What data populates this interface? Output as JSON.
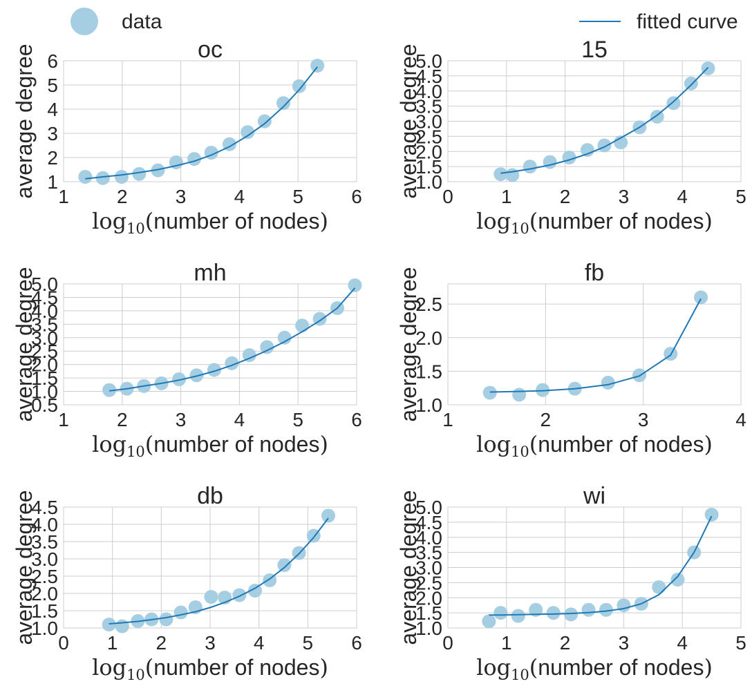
{
  "chart_data": {
    "type": "scatter",
    "legend": {
      "placement": "top",
      "data_label": "data",
      "fit_label": "fitted curve"
    },
    "colors": {
      "data": "#a6cee3",
      "fit": "#1f78b4",
      "grid": "#cccccc",
      "text": "#262626"
    },
    "panels": [
      {
        "id": "oc",
        "title": "oc",
        "xlabel": "log10(number of nodes)",
        "ylabel": "average degree",
        "xlim": [
          1,
          6
        ],
        "ylim": [
          1,
          6
        ],
        "xticks": [
          1,
          2,
          3,
          4,
          5,
          6
        ],
        "yticks": [
          1,
          2,
          3,
          4,
          5,
          6
        ],
        "ydec": 0,
        "x": [
          1.37,
          1.67,
          1.99,
          2.29,
          2.61,
          2.92,
          3.23,
          3.52,
          3.83,
          4.14,
          4.43,
          4.75,
          5.02,
          5.33
        ],
        "y": [
          1.2,
          1.15,
          1.2,
          1.32,
          1.47,
          1.8,
          1.94,
          2.2,
          2.55,
          3.05,
          3.5,
          4.25,
          4.95,
          5.8
        ],
        "fit_x": [
          1.37,
          1.67,
          1.99,
          2.29,
          2.61,
          2.92,
          3.23,
          3.52,
          3.83,
          4.14,
          4.43,
          4.75,
          5.02,
          5.33
        ],
        "fit_y": [
          1.12,
          1.2,
          1.28,
          1.38,
          1.5,
          1.66,
          1.85,
          2.1,
          2.45,
          2.9,
          3.4,
          4.1,
          4.8,
          5.75
        ]
      },
      {
        "id": "15",
        "title": "15",
        "xlabel": "log10(number of nodes)",
        "ylabel": "average degree",
        "xlim": [
          0,
          5
        ],
        "ylim": [
          1.0,
          5.0
        ],
        "xticks": [
          0,
          1,
          2,
          3,
          4,
          5
        ],
        "yticks": [
          1.0,
          1.5,
          2.0,
          2.5,
          3.0,
          3.5,
          4.0,
          4.5,
          5.0
        ],
        "ydec": 1,
        "x": [
          0.9,
          1.1,
          1.4,
          1.74,
          2.07,
          2.38,
          2.67,
          2.95,
          3.27,
          3.57,
          3.85,
          4.15,
          4.44
        ],
        "y": [
          1.25,
          1.22,
          1.5,
          1.65,
          1.8,
          2.05,
          2.2,
          2.3,
          2.8,
          3.15,
          3.6,
          4.25,
          4.75
        ],
        "fit_x": [
          0.9,
          1.1,
          1.4,
          1.74,
          2.07,
          2.38,
          2.67,
          2.95,
          3.27,
          3.57,
          3.85,
          4.15,
          4.44
        ],
        "fit_y": [
          1.28,
          1.33,
          1.42,
          1.55,
          1.72,
          1.92,
          2.15,
          2.45,
          2.8,
          3.2,
          3.65,
          4.2,
          4.78
        ]
      },
      {
        "id": "mh",
        "title": "mh",
        "xlabel": "log10(number of nodes)",
        "ylabel": "average degree",
        "xlim": [
          1,
          6
        ],
        "ylim": [
          0.5,
          5.0
        ],
        "xticks": [
          1,
          2,
          3,
          4,
          5,
          6
        ],
        "yticks": [
          0.5,
          1.0,
          1.5,
          2.0,
          2.5,
          3.0,
          3.5,
          4.0,
          4.5,
          5.0
        ],
        "ydec": 1,
        "x": [
          1.78,
          2.08,
          2.37,
          2.67,
          2.97,
          3.27,
          3.57,
          3.87,
          4.17,
          4.47,
          4.77,
          5.07,
          5.37,
          5.67,
          5.97
        ],
        "y": [
          1.05,
          1.1,
          1.2,
          1.3,
          1.45,
          1.6,
          1.8,
          2.05,
          2.35,
          2.65,
          3.0,
          3.45,
          3.7,
          4.1,
          4.95
        ],
        "fit_x": [
          1.78,
          2.08,
          2.37,
          2.67,
          2.97,
          3.27,
          3.57,
          3.87,
          4.17,
          4.47,
          4.77,
          5.07,
          5.37,
          5.67,
          5.97
        ],
        "fit_y": [
          1.02,
          1.1,
          1.2,
          1.3,
          1.42,
          1.57,
          1.75,
          1.97,
          2.23,
          2.52,
          2.85,
          3.22,
          3.63,
          4.1,
          4.85
        ]
      },
      {
        "id": "fb",
        "title": "fb",
        "xlabel": "log10(number of nodes)",
        "ylabel": "average degree",
        "xlim": [
          1,
          4
        ],
        "ylim": [
          1.0,
          2.8
        ],
        "xticks": [
          1,
          2,
          3,
          4
        ],
        "yticks": [
          1.0,
          1.5,
          2.0,
          2.5
        ],
        "ydec": 1,
        "x": [
          1.43,
          1.73,
          1.97,
          2.3,
          2.64,
          2.96,
          3.28,
          3.59
        ],
        "y": [
          1.18,
          1.15,
          1.22,
          1.24,
          1.33,
          1.44,
          1.76,
          2.6
        ],
        "fit_x": [
          1.43,
          1.73,
          1.97,
          2.3,
          2.64,
          2.96,
          3.28,
          3.59
        ],
        "fit_y": [
          1.19,
          1.2,
          1.21,
          1.24,
          1.3,
          1.43,
          1.74,
          2.58
        ]
      },
      {
        "id": "db",
        "title": "db",
        "xlabel": "log10(number of nodes)",
        "ylabel": "average degree",
        "xlim": [
          0,
          6
        ],
        "ylim": [
          1.0,
          4.5
        ],
        "xticks": [
          0,
          1,
          2,
          3,
          4,
          5,
          6
        ],
        "yticks": [
          1.0,
          1.5,
          2.0,
          2.5,
          3.0,
          3.5,
          4.0,
          4.5
        ],
        "ydec": 1,
        "x": [
          0.93,
          1.2,
          1.52,
          1.8,
          2.1,
          2.4,
          2.7,
          3.02,
          3.3,
          3.6,
          3.92,
          4.22,
          4.52,
          4.82,
          5.12,
          5.42
        ],
        "y": [
          1.1,
          1.05,
          1.2,
          1.25,
          1.25,
          1.45,
          1.6,
          1.9,
          1.88,
          1.95,
          2.08,
          2.38,
          2.82,
          3.17,
          3.67,
          4.25
        ],
        "fit_x": [
          0.93,
          1.2,
          1.52,
          1.8,
          2.1,
          2.4,
          2.7,
          3.02,
          3.3,
          3.6,
          3.92,
          4.22,
          4.52,
          4.82,
          5.12,
          5.42
        ],
        "fit_y": [
          1.12,
          1.15,
          1.19,
          1.24,
          1.3,
          1.38,
          1.47,
          1.6,
          1.74,
          1.92,
          2.15,
          2.42,
          2.75,
          3.15,
          3.62,
          4.18
        ]
      },
      {
        "id": "wi",
        "title": "wi",
        "xlabel": "log10(number of nodes)",
        "ylabel": "average degree",
        "xlim": [
          0,
          5
        ],
        "ylim": [
          1.0,
          5.0
        ],
        "xticks": [
          0,
          1,
          2,
          3,
          4,
          5
        ],
        "yticks": [
          1.0,
          1.5,
          2.0,
          2.5,
          3.0,
          3.5,
          4.0,
          4.5,
          5.0
        ],
        "ydec": 1,
        "x": [
          0.7,
          0.9,
          1.2,
          1.5,
          1.8,
          2.1,
          2.4,
          2.7,
          3.0,
          3.3,
          3.6,
          3.92,
          4.2,
          4.5
        ],
        "y": [
          1.22,
          1.5,
          1.4,
          1.6,
          1.5,
          1.45,
          1.6,
          1.6,
          1.75,
          1.8,
          2.35,
          2.6,
          3.5,
          4.75
        ],
        "fit_x": [
          0.7,
          0.9,
          1.2,
          1.5,
          1.8,
          2.1,
          2.4,
          2.7,
          3.0,
          3.3,
          3.6,
          3.92,
          4.2,
          4.5
        ],
        "fit_y": [
          1.43,
          1.43,
          1.44,
          1.45,
          1.46,
          1.48,
          1.51,
          1.56,
          1.64,
          1.8,
          2.1,
          2.7,
          3.5,
          4.7
        ]
      }
    ]
  }
}
